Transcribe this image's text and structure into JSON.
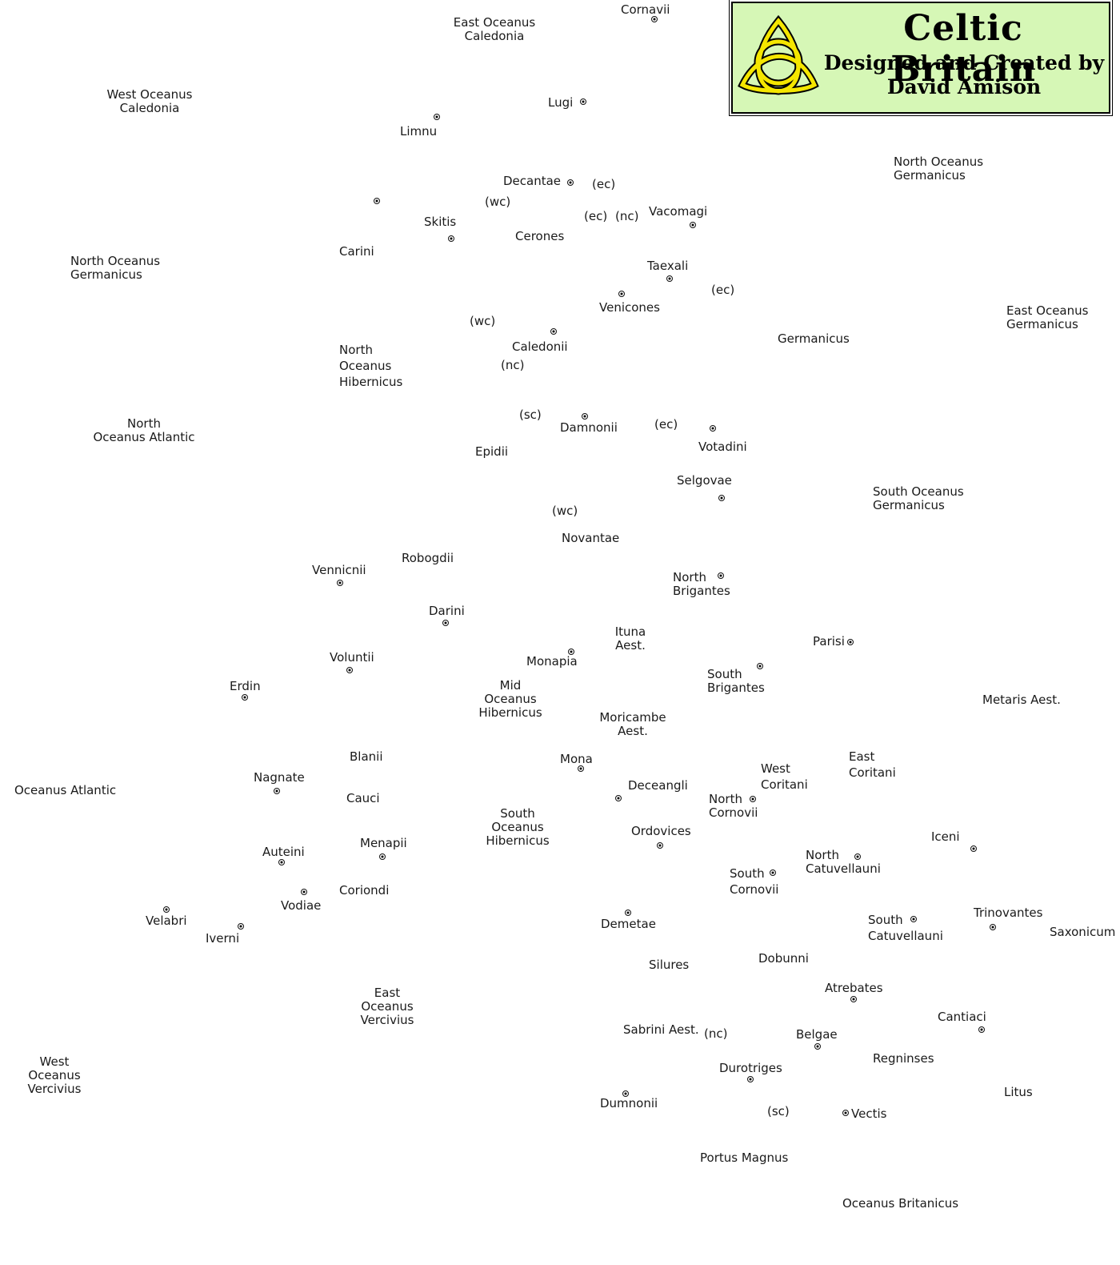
{
  "title": {
    "main": "Celtic Britain",
    "line1": "Designed and Created by",
    "line2": "David Amison"
  },
  "colors": {
    "title_background": "#d6f7b6",
    "knot": "#f5e600",
    "text": "#1a1a1a"
  },
  "icons": {
    "title_emblem": "triquetra-knot-icon",
    "settlement_marker": "dot-marker-icon"
  },
  "labels": {
    "cornavii": "Cornavii",
    "east_oceanus_caledonia": "East Oceanus\nCaledonia",
    "west_oceanus_caledonia": "West Oceanus\nCaledonia",
    "lugi": "Lugi",
    "limnu": "Limnu",
    "north_oceanus_germanicus_ne": "North Oceanus\nGermanicus",
    "decantae": "Decantae",
    "ec_1": "(ec)",
    "wc_1": "(wc)",
    "ec_2": "(ec)",
    "nc_1": "(nc)",
    "vacomagi": "Vacomagi",
    "skitis": "Skitis",
    "cerones": "Cerones",
    "carini": "Carini",
    "north_oceanus_germanicus_w": "North Oceanus\nGermanicus",
    "taexali": "Taexali",
    "ec_3": "(ec)",
    "venicones": "Venicones",
    "east_oceanus_germanicus": "East Oceanus\nGermanicus",
    "wc_2": "(wc)",
    "germanicus": "Germanicus",
    "caledonii": "Caledonii",
    "north_oceanus_hibernicus": "North\nOceanus\nHibernicus",
    "nc_2": "(nc)",
    "north_oceanus_atlantic": "North\nOceanus Atlantic",
    "sc_1": "(sc)",
    "damnonii": "Damnonii",
    "ec_4": "(ec)",
    "votadini": "Votadini",
    "epidii": "Epidii",
    "selgovae": "Selgovae",
    "south_oceanus_germanicus": "South Oceanus\nGermanicus",
    "wc_3": "(wc)",
    "novantae": "Novantae",
    "robogdii": "Robogdii",
    "vennicnii": "Vennicnii",
    "north_brigantes": "North\nBrigantes",
    "darini": "Darini",
    "ituna_aest": "Ituna\nAest.",
    "parisi": "Parisi",
    "monapia": "Monapia",
    "voluntii": "Voluntii",
    "south_brigantes": "South\nBrigantes",
    "erdin": "Erdin",
    "mid_oceanus_hibernicus": "Mid\nOceanus\nHibernicus",
    "metaris_aest": "Metaris Aest.",
    "moricambe_aest": "Moricambe\nAest.",
    "blanii": "Blanii",
    "mona": "Mona",
    "east_coritani": "East\nCoritani",
    "west_coritani": "West\nCoritani",
    "nagnate": "Nagnate",
    "oceanus_atlantic": "Oceanus Atlantic",
    "deceangli": "Deceangli",
    "cauci": "Cauci",
    "north_cornovii": "North\nCornovii",
    "south_oceanus_hibernicus": "South\nOceanus\nHibernicus",
    "ordovices": "Ordovices",
    "iceni": "Iceni",
    "menapii": "Menapii",
    "auteini": "Auteini",
    "north_catuvellauni": "North\nCatuvellauni",
    "south_cornovii": "South\nCornovii",
    "coriondi": "Coriondi",
    "vodiae": "Vodiae",
    "trinovantes": "Trinovantes",
    "south_catuvellauni": "South\nCatuvellauni",
    "velabri": "Velabri",
    "demetae": "Demetae",
    "saxonicum": "Saxonicum",
    "iverni": "Iverni",
    "dobunni": "Dobunni",
    "silures": "Silures",
    "atrebates": "Atrebates",
    "east_oceanus_vercivius": "East\nOceanus\nVercivius",
    "cantiaci": "Cantiaci",
    "sabrini_aest": "Sabrini Aest.",
    "nc_3": "(nc)",
    "belgae": "Belgae",
    "west_oceanus_vercivius": "West\nOceanus\nVercivius",
    "regninses": "Regninses",
    "durotriges": "Durotriges",
    "litus": "Litus",
    "dumnonii": "Dumnonii",
    "sc_2": "(sc)",
    "vectis": "Vectis",
    "portus_magnus": "Portus Magnus",
    "oceanus_britanicus": "Oceanus Britanicus"
  }
}
